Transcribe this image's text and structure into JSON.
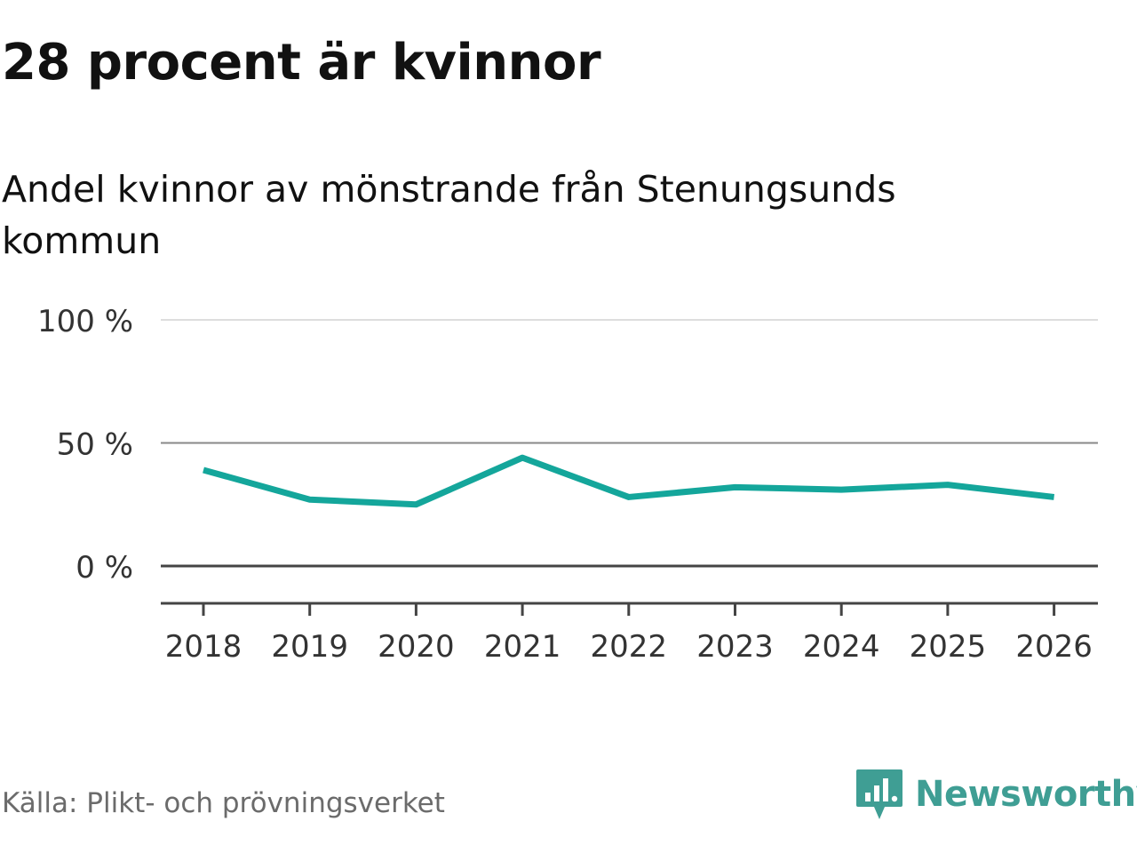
{
  "header": {
    "title": "28 procent är kvinnor",
    "subtitle": "Andel kvinnor av mönstrande från Stenungsunds kommun"
  },
  "footer": {
    "source": "Källa: Plikt- och prövningsverket",
    "brand": "Newsworthy",
    "logo_icon": "newsworthy-bar-chart-icon"
  },
  "colors": {
    "line": "#14a69b",
    "brand": "#3f9e94",
    "grid": "#dddddd",
    "grid_mid": "#888888",
    "baseline": "#444444",
    "text": "#111111",
    "muted": "#6b6b6b"
  },
  "chart_data": {
    "type": "line",
    "title": "28 procent är kvinnor",
    "subtitle": "Andel kvinnor av mönstrande från Stenungsunds kommun",
    "categories": [
      "2018",
      "2019",
      "2020",
      "2021",
      "2022",
      "2023",
      "2024",
      "2025",
      "2026"
    ],
    "series": [
      {
        "name": "Andel kvinnor",
        "values": [
          39,
          27,
          25,
          44,
          28,
          32,
          31,
          33,
          28
        ]
      }
    ],
    "ylim": [
      0,
      100
    ],
    "yticks": [
      0,
      50,
      100
    ],
    "ytick_labels": [
      "0 %",
      "50 %",
      "100 %"
    ],
    "xlabel": "",
    "ylabel": "",
    "grid": true
  }
}
